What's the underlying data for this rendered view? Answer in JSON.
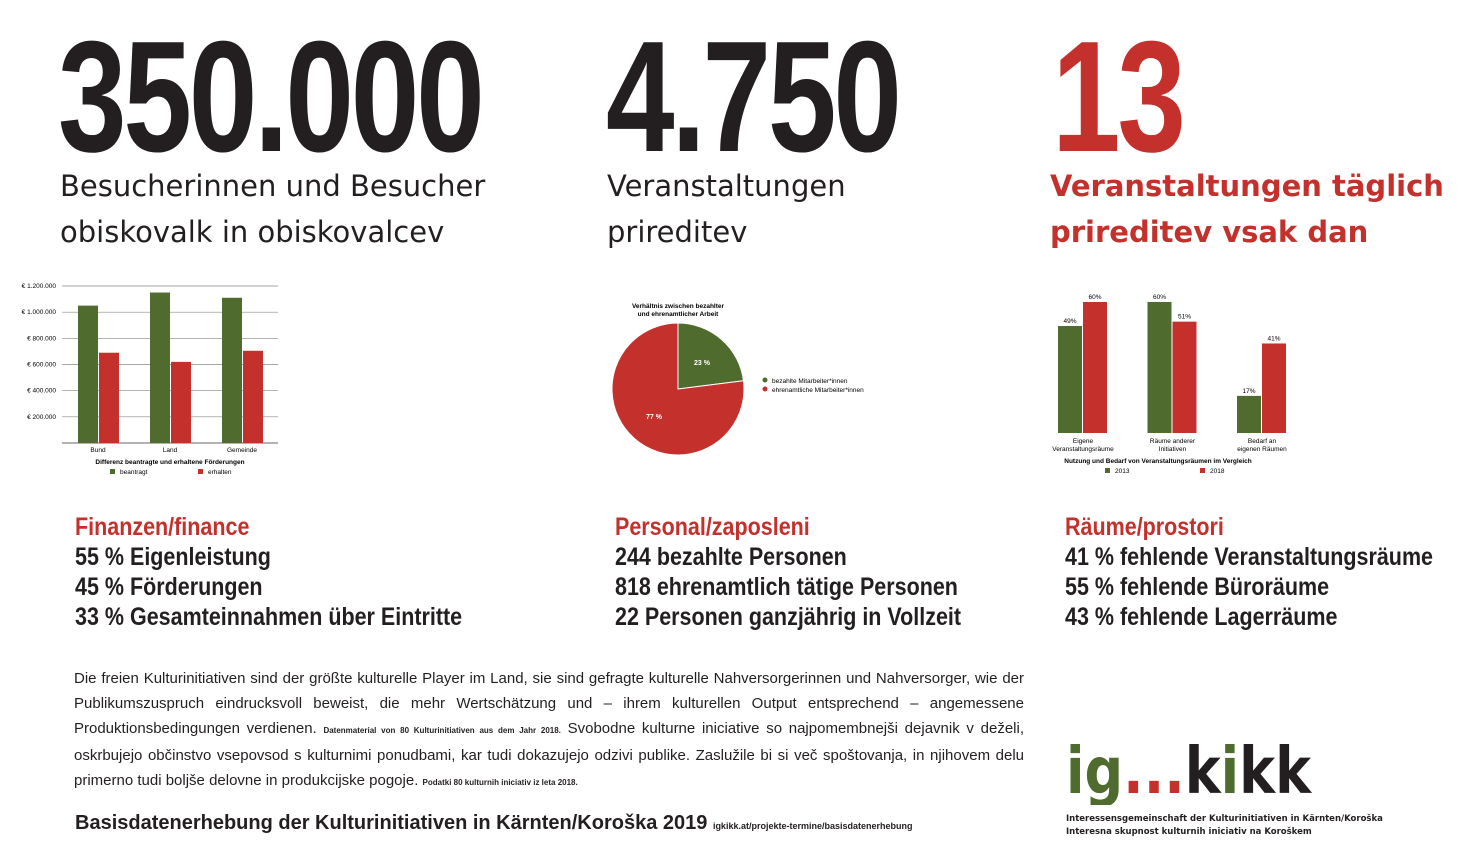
{
  "colors": {
    "red": "#c4302b",
    "green": "#4f6b2d",
    "dark": "#231f20"
  },
  "stats": [
    {
      "number": "350.000",
      "line1": "Besucherinnen und Besucher",
      "line2": "obiskovalk in obiskovalcev"
    },
    {
      "number": "4.750",
      "line1": "Veranstaltungen",
      "line2": "prireditev"
    },
    {
      "number": "13",
      "line1": "Veranstaltungen täglich",
      "line2": "prireditev vsak dan"
    }
  ],
  "sections": [
    {
      "title": "Finanzen/finance",
      "lines": [
        "55 % Eigenleistung",
        "45 % Förderungen",
        "33 % Gesamteinnahmen über Eintritte"
      ]
    },
    {
      "title": "Personal/zaposleni",
      "lines": [
        "244 bezahlte Personen",
        "818 ehrenamtlich tätige Personen",
        "22 Personen ganzjährig in Vollzeit"
      ]
    },
    {
      "title": "Räume/prostori",
      "lines": [
        "41 % fehlende Veranstaltungsräume",
        "55 % fehlende Büroräume",
        "43 % fehlende Lagerräume"
      ]
    }
  ],
  "chart_data": [
    {
      "type": "bar",
      "title": "Differenz beantragte und erhaltene Förderungen",
      "categories": [
        "Bund",
        "Land",
        "Gemeinde"
      ],
      "series": [
        {
          "name": "beantragt",
          "values": [
            1050000,
            1150000,
            1110000
          ]
        },
        {
          "name": "erhalten",
          "values": [
            690000,
            620000,
            705000
          ]
        }
      ],
      "ylim": [
        0,
        1200000
      ],
      "yticks": [
        "€ 1.200.000",
        "€ 1.000.000",
        "€ 800.000",
        "€ 600.000",
        "€ 400.000",
        "€ 200.000"
      ],
      "grid": true,
      "legend": "bottom"
    },
    {
      "type": "pie",
      "title": "Verhältnis zwischen bezahlter und ehrenamtlicher Arbeit",
      "slices": [
        {
          "name": "bezahlte Mitarbeiter*innen",
          "value": 23,
          "label": "23 %"
        },
        {
          "name": "ehrenamtliche Mitarbeiter*innen",
          "value": 77,
          "label": "77 %"
        }
      ],
      "legend": "right"
    },
    {
      "type": "bar",
      "title": "Nutzung und Bedarf von Veranstaltungsräumen im Vergleich",
      "categories": [
        "Eigene Veranstaltungsräume",
        "Räume anderer Initiativen",
        "Bedarf an eigenen Räumen"
      ],
      "series": [
        {
          "name": "2013",
          "values": [
            49,
            60,
            17
          ]
        },
        {
          "name": "2018",
          "values": [
            60,
            51,
            41
          ]
        }
      ],
      "ylim": [
        0,
        60
      ],
      "grid": false,
      "legend": "bottom"
    }
  ],
  "paragraph": {
    "de": "Die freien Kulturinitiativen sind der größte kulturelle Player im Land, sie sind gefragte kulturelle Nahversorgerinnen und Nahversorger, wie der Publikumszuspruch eindrucksvoll beweist, die mehr Wertschätzung und – ihrem kulturellen Output entsprechend – angemessene Produktionsbedingungen verdienen.",
    "de_note": "Datenmaterial von 80 Kulturinitiativen aus dem Jahr 2018.",
    "sl": "Svobodne kulturne iniciative so najpomembnejši dejavnik v deželi, oskrbujejo občinstvo vsepovsod s kulturnimi ponudbami, kar tudi dokazujejo odzivi publike. Zaslužile bi si več spoštovanja, in njihovem delu primerno tudi boljše delovne in produkcijske pogoje.",
    "sl_note": "Podatki 80 kulturnih iniciativ iz leta 2018."
  },
  "footer": {
    "title": "Basisdatenerhebung der Kulturinitiativen in Kärnten/Koroška 2019",
    "url": "igkikk.at/projekte-termine/basisdatenerhebung"
  },
  "logo": {
    "text": "ig...kikk",
    "line1": "Interessensgemeinschaft der Kulturinitiativen in Kärnten/Koroška",
    "line2": "Interesna skupnost kulturnih iniciativ na Koroškem"
  }
}
